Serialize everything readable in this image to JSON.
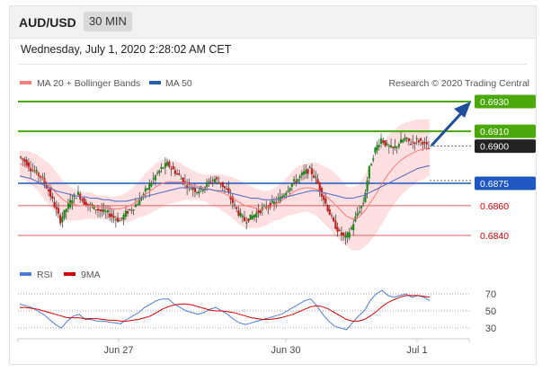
{
  "header": {
    "pair": "AUD/USD",
    "timeframe": "30 MIN"
  },
  "datetime": "Wednesday, July 1, 2020 2:28:02 AM CET",
  "credit": "Research © 2020 Trading Central",
  "colors": {
    "resistance": "#4aa80a",
    "support": "#1f57c3",
    "price": "#222222",
    "minor": "#e06060",
    "arrow": "#1f4e9c",
    "band": "#ffd6d6",
    "ma20": "#ff7a7a",
    "ma50": "#5a6fc0",
    "rsi": "#4e7bd9",
    "rsi_ma": "#d40000"
  },
  "chart_data": [
    {
      "type": "candlestick",
      "legend": [
        {
          "name": "MA 20 + Bollinger Bands",
          "color": "#f08080"
        },
        {
          "name": "MA 50",
          "color": "#2a5ea8"
        }
      ],
      "x_labels": [
        "Jun 27",
        "Jun 30",
        "Jul 1"
      ],
      "ylim": [
        0.6832,
        0.6938
      ],
      "levels": [
        {
          "value": 0.693,
          "label": "0.6930",
          "kind": "resistance"
        },
        {
          "value": 0.691,
          "label": "0.6910",
          "kind": "resistance"
        },
        {
          "value": 0.69,
          "label": "0.6900",
          "kind": "price"
        },
        {
          "value": 0.6875,
          "label": "0.6875",
          "kind": "support"
        },
        {
          "value": 0.686,
          "label": "0.6860",
          "kind": "minor"
        },
        {
          "value": 0.684,
          "label": "0.6840",
          "kind": "minor"
        }
      ],
      "price_path": [
        0.6893,
        0.689,
        0.6885,
        0.6882,
        0.6878,
        0.687,
        0.686,
        0.685,
        0.6858,
        0.6865,
        0.6868,
        0.6862,
        0.686,
        0.6858,
        0.6856,
        0.6855,
        0.6852,
        0.685,
        0.6855,
        0.6858,
        0.6862,
        0.6868,
        0.6874,
        0.688,
        0.6885,
        0.6888,
        0.6884,
        0.688,
        0.6875,
        0.6872,
        0.687,
        0.6872,
        0.6876,
        0.6878,
        0.6875,
        0.687,
        0.6862,
        0.6855,
        0.685,
        0.6852,
        0.6855,
        0.6858,
        0.686,
        0.6862,
        0.6865,
        0.687,
        0.6875,
        0.6878,
        0.6882,
        0.6884,
        0.6878,
        0.6868,
        0.6858,
        0.6848,
        0.6842,
        0.6838,
        0.6845,
        0.6855,
        0.6862,
        0.6885,
        0.6898,
        0.6905,
        0.69,
        0.6898,
        0.6902,
        0.6905,
        0.6902,
        0.6904,
        0.6903,
        0.6898
      ],
      "ma20": [
        0.6888,
        0.6887,
        0.6885,
        0.6882,
        0.6878,
        0.6874,
        0.6869,
        0.6865,
        0.6862,
        0.6861,
        0.686,
        0.686,
        0.686,
        0.6859,
        0.6859,
        0.6858,
        0.6858,
        0.6858,
        0.6859,
        0.6861,
        0.6864,
        0.6867,
        0.687,
        0.6873,
        0.6875,
        0.6876,
        0.6876,
        0.6876,
        0.6875,
        0.6874,
        0.6873,
        0.6872,
        0.6871,
        0.687,
        0.6869,
        0.6867,
        0.6865,
        0.6862,
        0.686,
        0.6859,
        0.6858,
        0.6858,
        0.6859,
        0.6861,
        0.6863,
        0.6866,
        0.6869,
        0.6871,
        0.6872,
        0.6872,
        0.6871,
        0.6868,
        0.6865,
        0.6861,
        0.6857,
        0.6853,
        0.6851,
        0.6852,
        0.6856,
        0.6862,
        0.6868,
        0.6875,
        0.6881,
        0.6886,
        0.689,
        0.6893,
        0.6895,
        0.6897,
        0.6898,
        0.6899
      ],
      "ma50": [
        0.688,
        0.6879,
        0.6878,
        0.6876,
        0.6874,
        0.6872,
        0.687,
        0.6869,
        0.6868,
        0.6867,
        0.6866,
        0.6866,
        0.6865,
        0.6865,
        0.6864,
        0.6864,
        0.6863,
        0.6863,
        0.6863,
        0.6864,
        0.6865,
        0.6866,
        0.6867,
        0.6868,
        0.6869,
        0.687,
        0.6871,
        0.6872,
        0.6872,
        0.6872,
        0.6872,
        0.6871,
        0.6871,
        0.687,
        0.687,
        0.6869,
        0.6868,
        0.6867,
        0.6866,
        0.6865,
        0.6865,
        0.6864,
        0.6864,
        0.6864,
        0.6865,
        0.6866,
        0.6867,
        0.6868,
        0.6869,
        0.687,
        0.687,
        0.6869,
        0.6868,
        0.6867,
        0.6866,
        0.6865,
        0.6865,
        0.6866,
        0.6867,
        0.6869,
        0.6871,
        0.6873,
        0.6875,
        0.6877,
        0.6879,
        0.6881,
        0.6883,
        0.6885,
        0.6886,
        0.6887
      ],
      "bb_width": [
        0.0009,
        0.001,
        0.0011,
        0.0012,
        0.0013,
        0.0014,
        0.0014,
        0.0013,
        0.0012,
        0.0011,
        0.001,
        0.0009,
        0.0009,
        0.0008,
        0.0008,
        0.0008,
        0.0008,
        0.0009,
        0.001,
        0.0011,
        0.0012,
        0.0014,
        0.0015,
        0.0016,
        0.0016,
        0.0015,
        0.0014,
        0.0013,
        0.0011,
        0.001,
        0.0009,
        0.0009,
        0.001,
        0.0011,
        0.0012,
        0.0013,
        0.0014,
        0.0015,
        0.0015,
        0.0014,
        0.0013,
        0.0012,
        0.0011,
        0.0011,
        0.0012,
        0.0013,
        0.0015,
        0.0016,
        0.0016,
        0.0017,
        0.0018,
        0.0019,
        0.002,
        0.0021,
        0.0021,
        0.002,
        0.0021,
        0.0022,
        0.0024,
        0.0026,
        0.0027,
        0.0027,
        0.0026,
        0.0025,
        0.0024,
        0.0023,
        0.0022,
        0.0021,
        0.002,
        0.0019
      ]
    },
    {
      "type": "line",
      "legend": [
        {
          "name": "RSI",
          "color": "#4e7bd9"
        },
        {
          "name": "9MA",
          "color": "#d40000"
        }
      ],
      "yticks": [
        70,
        50,
        30
      ],
      "ylim": [
        20,
        80
      ],
      "rsi": [
        58,
        56,
        54,
        50,
        46,
        40,
        34,
        30,
        38,
        44,
        46,
        40,
        40,
        38,
        38,
        37,
        36,
        35,
        40,
        44,
        48,
        54,
        58,
        62,
        64,
        64,
        58,
        54,
        50,
        48,
        46,
        48,
        52,
        54,
        50,
        46,
        40,
        36,
        34,
        36,
        38,
        40,
        42,
        44,
        46,
        50,
        54,
        58,
        62,
        64,
        56,
        46,
        38,
        32,
        30,
        28,
        36,
        44,
        50,
        62,
        70,
        74,
        68,
        66,
        68,
        70,
        66,
        68,
        66,
        62
      ],
      "rsi_ma": [
        54,
        54,
        53,
        52,
        50,
        48,
        46,
        44,
        42,
        42,
        42,
        41,
        41,
        41,
        40,
        39,
        39,
        38,
        38,
        39,
        40,
        42,
        44,
        48,
        52,
        55,
        57,
        58,
        58,
        57,
        55,
        53,
        51,
        50,
        50,
        49,
        48,
        46,
        44,
        42,
        41,
        40,
        40,
        41,
        42,
        44,
        46,
        49,
        52,
        55,
        56,
        55,
        52,
        48,
        44,
        40,
        38,
        38,
        40,
        44,
        49,
        55,
        60,
        63,
        66,
        68,
        68,
        68,
        67,
        66
      ]
    }
  ]
}
